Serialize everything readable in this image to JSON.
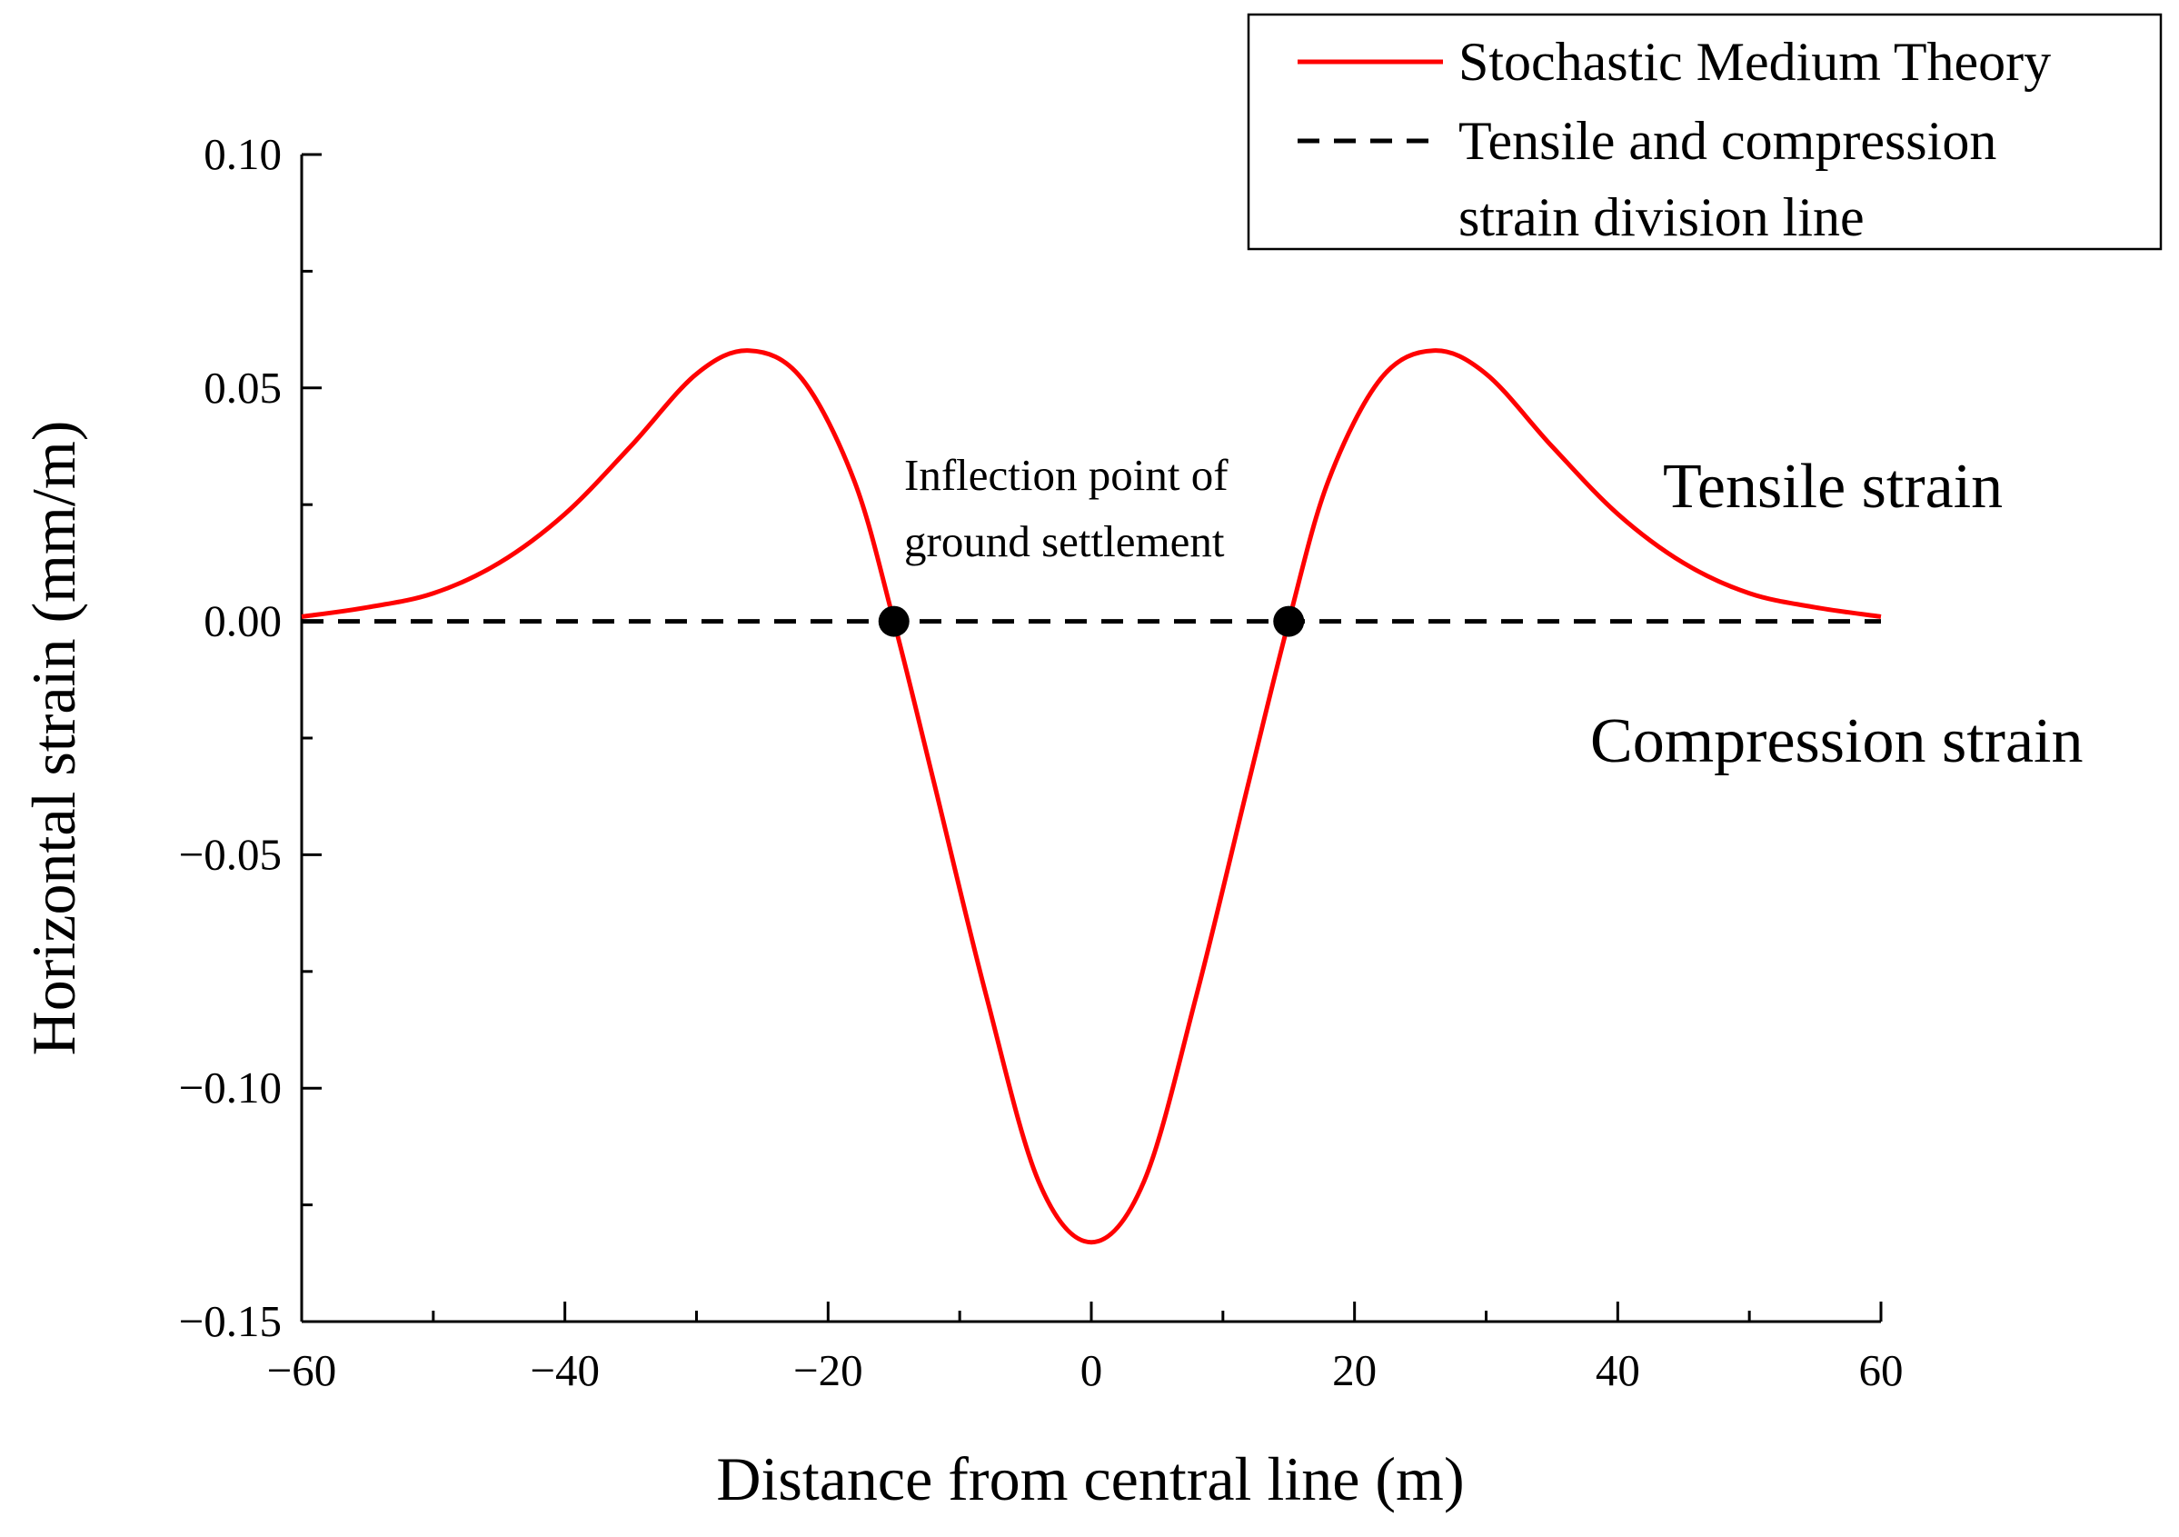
{
  "chart_data": {
    "type": "line",
    "xlabel": "Distance from central line (m)",
    "ylabel": "Horizontal strain (mm/m)",
    "xlim": [
      -60,
      60
    ],
    "ylim": [
      -0.15,
      0.1
    ],
    "x_ticks": [
      -60,
      -40,
      -20,
      0,
      20,
      40,
      60
    ],
    "x_tick_labels": [
      "−60",
      "−40",
      "−20",
      "0",
      "20",
      "40",
      "60"
    ],
    "y_ticks": [
      0.1,
      0.05,
      0.0,
      -0.05,
      -0.1,
      -0.15
    ],
    "y_tick_labels": [
      "0.10",
      "0.05",
      "0.00",
      "−0.05",
      "−0.10",
      "−0.15"
    ],
    "legend": {
      "placement": "top-right",
      "entries": [
        {
          "label": "Stochastic Medium Theory",
          "style": "solid",
          "color": "#ff0000"
        },
        {
          "label_lines": [
            "Tensile and compression",
            "strain division line"
          ],
          "style": "dashed",
          "color": "#000000"
        }
      ]
    },
    "annotations": {
      "inflection_lines": [
        "Inflection point of",
        "ground settlement"
      ],
      "tensile": "Tensile strain",
      "compression": "Compression strain"
    },
    "series": [
      {
        "name": "Stochastic Medium Theory",
        "color": "#ff0000",
        "x": [
          -60,
          -55,
          -50,
          -45,
          -40,
          -35,
          -30,
          -26,
          -22,
          -18,
          -15,
          -12,
          -8,
          -4,
          0,
          4,
          8,
          12,
          15,
          18,
          22,
          26,
          30,
          35,
          40,
          45,
          50,
          55,
          60
        ],
        "y": [
          0.001,
          0.003,
          0.006,
          0.0125,
          0.023,
          0.0375,
          0.053,
          0.058,
          0.052,
          0.03,
          0.0,
          -0.034,
          -0.08,
          -0.12,
          -0.133,
          -0.12,
          -0.08,
          -0.034,
          0.0,
          0.03,
          0.052,
          0.058,
          0.053,
          0.0375,
          0.023,
          0.0125,
          0.006,
          0.003,
          0.001
        ]
      },
      {
        "name": "Tensile and compression strain division line",
        "color": "#000000",
        "dash": true,
        "x": [
          -60,
          60
        ],
        "y": [
          0,
          0
        ]
      }
    ],
    "points": [
      {
        "x": -15,
        "y": 0
      },
      {
        "x": 15,
        "y": 0
      }
    ]
  }
}
